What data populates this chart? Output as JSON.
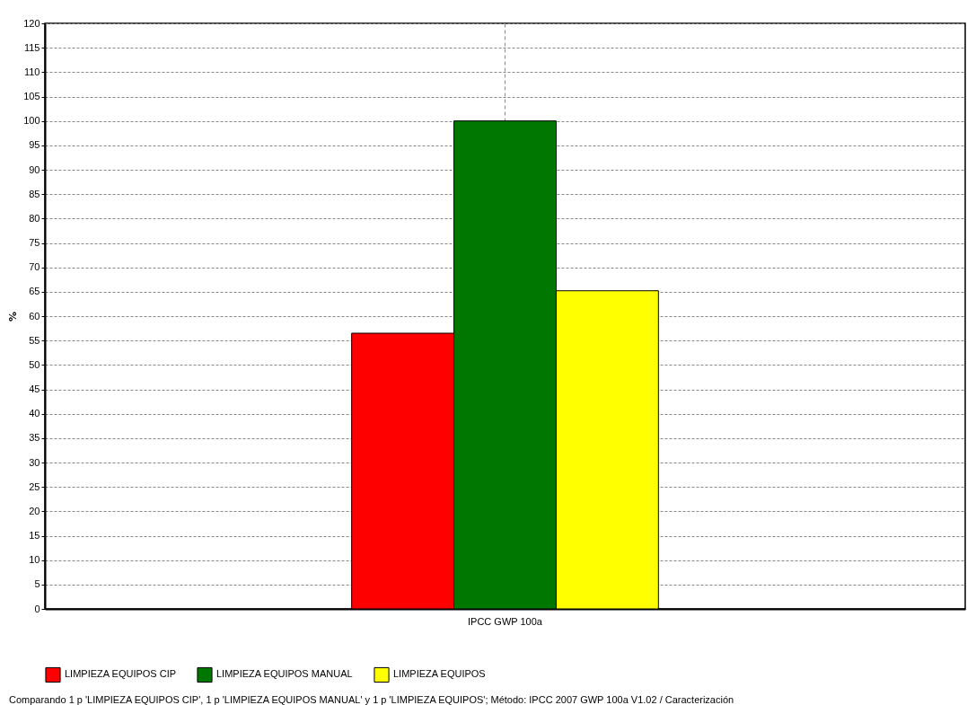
{
  "chart_data": {
    "type": "bar",
    "categories": [
      "IPCC GWP 100a"
    ],
    "ylabel": "%",
    "series": [
      {
        "name": "LIMPIEZA EQUIPOS CIP",
        "color": "#ff0000",
        "values": [
          56.5
        ]
      },
      {
        "name": "LIMPIEZA EQUIPOS MANUAL",
        "color": "#007800",
        "values": [
          100
        ]
      },
      {
        "name": "LIMPIEZA EQUIPOS",
        "color": "#ffff00",
        "values": [
          65.2
        ]
      }
    ],
    "ylim": [
      0,
      120
    ],
    "yticks": [
      0,
      5,
      10,
      15,
      20,
      25,
      30,
      35,
      40,
      45,
      50,
      55,
      60,
      65,
      70,
      75,
      80,
      85,
      90,
      95,
      100,
      105,
      110,
      115,
      120
    ],
    "grid": true,
    "legend": "bottom",
    "annotations": [
      "Comparando 1 p 'LIMPIEZA EQUIPOS CIP', 1 p 'LIMPIEZA EQUIPOS MANUAL' y 1 p 'LIMPIEZA EQUIPOS'; Método: IPCC 2007 GWP 100a V1.02 / Caracterización"
    ]
  }
}
